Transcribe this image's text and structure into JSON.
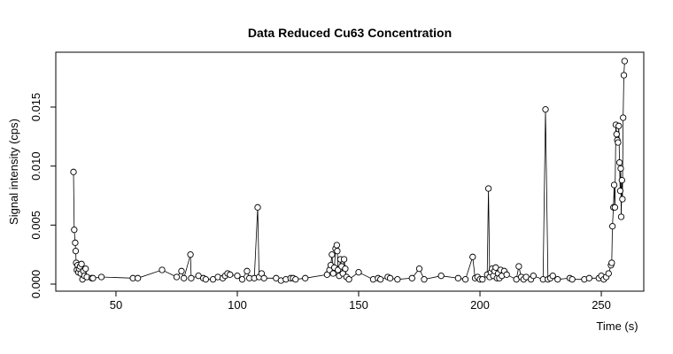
{
  "chart_data": {
    "type": "scatter-line",
    "title": "Data Reduced Cu63 Concentration",
    "x_label": "Time (s)",
    "y_label": "Signal intensity (cps)",
    "xlim": [
      25.2,
      267.5
    ],
    "ylim": [
      -0.0006,
      0.01965
    ],
    "xticks": [
      50,
      100,
      150,
      200,
      250
    ],
    "yticks": [
      {
        "value": 0,
        "label": "0.000"
      },
      {
        "value": 0.005,
        "label": "0.005"
      },
      {
        "value": 0.01,
        "label": "0.010"
      },
      {
        "value": 0.015,
        "label": "0.015"
      }
    ],
    "color": "#000000",
    "x": [
      32.5,
      32.8,
      33.2,
      33.4,
      33.6,
      33.9,
      34.2,
      34.5,
      34.8,
      35.2,
      35.5,
      35.8,
      36.2,
      36.6,
      37.0,
      37.5,
      38,
      40,
      40.5,
      44,
      57,
      59,
      69,
      75,
      77,
      78,
      80.7,
      81,
      84,
      86,
      87,
      90,
      92,
      94,
      95,
      96,
      97,
      100,
      102,
      104,
      105,
      107,
      108.4,
      109,
      110,
      111,
      116,
      118,
      120,
      122,
      123,
      124,
      128,
      137,
      138,
      138.5,
      139,
      139.5,
      140,
      140.5,
      141,
      141.2,
      141.5,
      142,
      142.5,
      143,
      143.5,
      144,
      144.5,
      145,
      146,
      150,
      156,
      158,
      159,
      162,
      163,
      166,
      172,
      175,
      177,
      184,
      191,
      194,
      197,
      198,
      199,
      200,
      201,
      203,
      203.5,
      204,
      204.5,
      205,
      205.5,
      206,
      206.5,
      207,
      207.5,
      208,
      208.5,
      209,
      210,
      211,
      215,
      216,
      217,
      218,
      219,
      221,
      222,
      226,
      227,
      228,
      229,
      230,
      232,
      237,
      238,
      243,
      245,
      249,
      250,
      251,
      252,
      253,
      254,
      254.3,
      254.6,
      255,
      255.3,
      255.6,
      256,
      256.3,
      256.6,
      256.9,
      257.2,
      257.5,
      257.8,
      258,
      258.2,
      258.5,
      258.7,
      259,
      259.3,
      259.6
    ],
    "values": [
      0.0095,
      0.0046,
      0.0035,
      0.0028,
      0.0018,
      0.0012,
      0.0016,
      0.001,
      0.0013,
      0.0015,
      0.0009,
      0.0017,
      0.0004,
      0.0011,
      0.0007,
      0.0013,
      0.0006,
      0.0005,
      0.0005,
      0.0006,
      0.0005,
      0.0005,
      0.0012,
      0.0006,
      0.0011,
      0.0005,
      0.0025,
      0.0005,
      0.0007,
      0.0005,
      0.0004,
      0.0004,
      0.0006,
      0.0005,
      0.0007,
      0.0009,
      0.0008,
      0.0007,
      0.0004,
      0.0011,
      0.0005,
      0.0005,
      0.0065,
      0.0006,
      0.0009,
      0.0005,
      0.0005,
      0.0003,
      0.0004,
      0.0005,
      0.0005,
      0.0004,
      0.0005,
      0.0008,
      0.0012,
      0.0016,
      0.0025,
      0.0009,
      0.0014,
      0.003,
      0.0033,
      0.0028,
      0.0012,
      0.0007,
      0.0021,
      0.0015,
      0.0009,
      0.0021,
      0.0013,
      0.0006,
      0.0004,
      0.001,
      0.0004,
      0.0005,
      0.0004,
      0.0006,
      0.0005,
      0.0004,
      0.0005,
      0.0013,
      0.0004,
      0.0007,
      0.0005,
      0.0004,
      0.0023,
      0.0005,
      0.0006,
      0.0004,
      0.0004,
      0.0008,
      0.0081,
      0.0006,
      0.001,
      0.0013,
      0.0007,
      0.0011,
      0.0014,
      0.0005,
      0.0009,
      0.0005,
      0.0012,
      0.0007,
      0.0011,
      0.0008,
      0.0004,
      0.0015,
      0.0006,
      0.0004,
      0.0006,
      0.0004,
      0.0007,
      0.0004,
      0.0148,
      0.0004,
      0.0005,
      0.0007,
      0.0004,
      0.0005,
      0.0004,
      0.0004,
      0.0005,
      0.0005,
      0.0007,
      0.0004,
      0.0006,
      0.0009,
      0.0016,
      0.0018,
      0.0049,
      0.0065,
      0.0084,
      0.0065,
      0.0135,
      0.0127,
      0.0122,
      0.012,
      0.0134,
      0.0103,
      0.0079,
      0.0098,
      0.0057,
      0.0088,
      0.0072,
      0.0141,
      0.0177,
      0.0189
    ]
  }
}
